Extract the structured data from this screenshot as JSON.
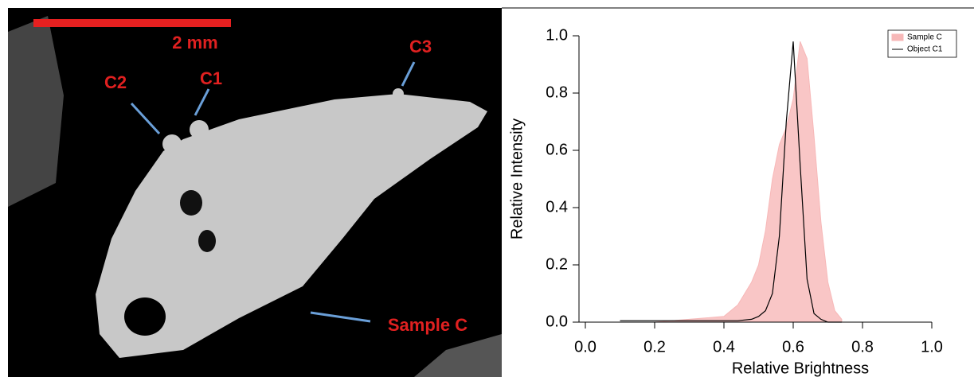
{
  "image": {
    "scale_bar": "2 mm",
    "labels": [
      "C2",
      "C1",
      "C3",
      "Sample C"
    ]
  },
  "chart_data": {
    "type": "line",
    "xlabel": "Relative Brightness",
    "ylabel": "Relative Intensity",
    "x": [
      0.1,
      0.2,
      0.3,
      0.4,
      0.44,
      0.48,
      0.5,
      0.52,
      0.54,
      0.56,
      0.58,
      0.6,
      0.62,
      0.64,
      0.66,
      0.68,
      0.7,
      0.72,
      0.74
    ],
    "series": [
      {
        "name": "Sample C",
        "color": "#f7b8b8",
        "kind": "area",
        "values": [
          0,
          0,
          0.01,
          0.02,
          0.06,
          0.14,
          0.2,
          0.32,
          0.5,
          0.62,
          0.68,
          0.78,
          0.98,
          0.92,
          0.65,
          0.35,
          0.14,
          0.04,
          0.01
        ]
      },
      {
        "name": "Object C1",
        "color": "#000000",
        "kind": "line",
        "values": [
          0.005,
          0.005,
          0.005,
          0.005,
          0.005,
          0.01,
          0.02,
          0.04,
          0.1,
          0.3,
          0.7,
          0.98,
          0.55,
          0.15,
          0.03,
          0.01,
          0,
          0,
          0
        ]
      }
    ],
    "xlim": [
      0,
      1
    ],
    "xticks": [
      {
        "value": 0,
        "label": "0.0"
      },
      0.2,
      0.4,
      0.6,
      0.8,
      {
        "value": 1,
        "label": "1.0"
      }
    ],
    "ylim": [
      0,
      1
    ],
    "yticks": [
      {
        "value": 0,
        "label": "0.0"
      },
      0.2,
      0.4,
      0.6,
      0.8,
      {
        "value": 1,
        "label": "1.0"
      }
    ],
    "legend": "top-right"
  }
}
